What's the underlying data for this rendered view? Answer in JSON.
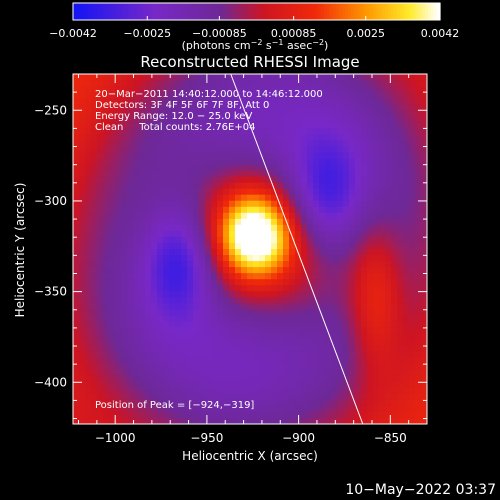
{
  "chart_data": {
    "type": "heatmap",
    "title": "Reconstructed RHESSI Image",
    "xlabel": "Heliocentric X (arcsec)",
    "ylabel": "Heliocentric Y (arcsec)",
    "xlim": [
      -1023,
      -830
    ],
    "ylim": [
      -423,
      -230
    ],
    "x_ticks": [
      -1000,
      -950,
      -900,
      -850
    ],
    "y_ticks": [
      -250,
      -300,
      -350,
      -400
    ],
    "x_tick_labels": [
      "−1000",
      "−950",
      "−900",
      "−850"
    ],
    "y_tick_labels": [
      "−250",
      "−300",
      "−350",
      "−400"
    ],
    "colorbar": {
      "ticks": [
        -0.0042,
        -0.0025,
        -0.00085,
        0.00085,
        0.0025,
        0.0042
      ],
      "tick_labels": [
        "−0.0042",
        "−0.0025",
        "−0.00085",
        "0.00085",
        "0.0025",
        "0.0042"
      ],
      "range": [
        -0.0042,
        0.0042
      ],
      "unit_label": "(photons cm",
      "unit_exp1": "−2",
      "unit_mid": " s",
      "unit_exp2": "−1",
      "unit_end": " asec",
      "unit_exp3": "−2",
      "unit_close": ")",
      "colormap": "rainbow_idl"
    },
    "annotations": [
      "20−Mar−2011 14:40:12.000 to 14:46:12.000",
      "Detectors: 3F 4F 5F 6F 7F 8F, Att 0",
      "Energy Range: 12.0 − 25.0 keV",
      "Clean     Total counts: 2.76E+04"
    ],
    "peak_label": "Position of Peak = [−924,−319]",
    "peak": [
      -924,
      -319
    ],
    "peak_value": 0.0042,
    "limb_line": [
      [
        -937,
        -230
      ],
      [
        -865,
        -423
      ]
    ],
    "features": [
      {
        "kind": "peak",
        "x": -924,
        "y": -319,
        "value": 0.0042
      },
      {
        "kind": "minimum",
        "x": -965,
        "y": -333,
        "value": -0.0042
      },
      {
        "kind": "minimum",
        "x": -885,
        "y": -298,
        "value": -0.0035
      },
      {
        "kind": "secondary-max",
        "x": -858,
        "y": -355,
        "value": 0.0018
      }
    ]
  },
  "footer": "10−May−2022 03:37"
}
